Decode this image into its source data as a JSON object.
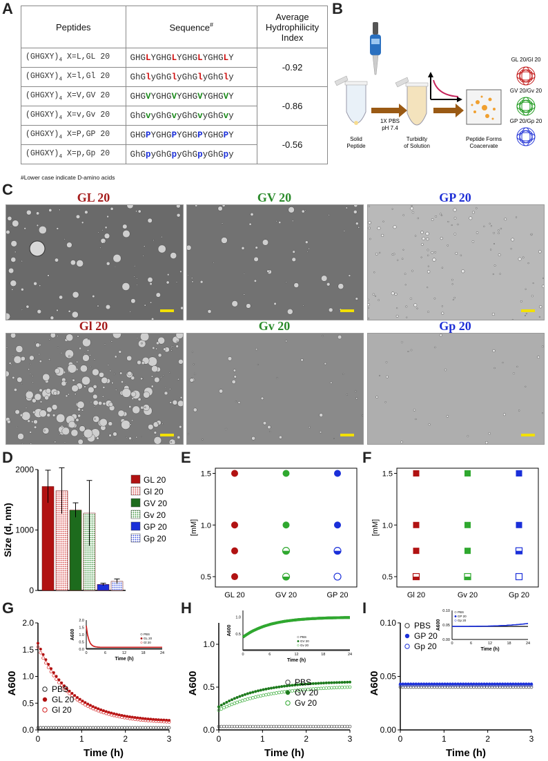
{
  "panels": {
    "a": "A",
    "b": "B",
    "c": "C",
    "d": "D",
    "e": "E",
    "f": "F",
    "g": "G",
    "h": "H",
    "i": "I"
  },
  "table": {
    "headers": [
      "Peptides",
      "Sequence",
      "#",
      "Average Hydrophilicity Index"
    ],
    "rows": [
      {
        "peptide": "(GHGXY)",
        "sub": "4",
        "rest": " X=L,GL 20",
        "seq": [
          [
            "GHG",
            ""
          ],
          [
            "L",
            "r"
          ],
          [
            "YGHG",
            ""
          ],
          [
            "L",
            "r"
          ],
          [
            "YGHG",
            ""
          ],
          [
            "L",
            "r"
          ],
          [
            "YGHG",
            ""
          ],
          [
            "L",
            "r"
          ],
          [
            "Y",
            ""
          ]
        ]
      },
      {
        "peptide": "(GHGXY)",
        "sub": "4",
        "rest": " X=l,Gl 20",
        "seq": [
          [
            "GhG",
            ""
          ],
          [
            "l",
            "r"
          ],
          [
            "yGhG",
            ""
          ],
          [
            "l",
            "r"
          ],
          [
            "yGhG",
            ""
          ],
          [
            "l",
            "r"
          ],
          [
            "yGhG",
            ""
          ],
          [
            "l",
            "r"
          ],
          [
            "y",
            ""
          ]
        ]
      },
      {
        "peptide": "(GHGXY)",
        "sub": "4",
        "rest": " X=V,GV 20",
        "seq": [
          [
            "GHG",
            ""
          ],
          [
            "V",
            "g"
          ],
          [
            "YGHG",
            ""
          ],
          [
            "V",
            "g"
          ],
          [
            "YGHG",
            ""
          ],
          [
            "V",
            "g"
          ],
          [
            "YGHG",
            ""
          ],
          [
            "V",
            "g"
          ],
          [
            "Y",
            ""
          ]
        ]
      },
      {
        "peptide": "(GHGXY)",
        "sub": "4",
        "rest": " X=v,Gv 20",
        "seq": [
          [
            "GhG",
            ""
          ],
          [
            "v",
            "g"
          ],
          [
            "yGhG",
            ""
          ],
          [
            "v",
            "g"
          ],
          [
            "yGhG",
            ""
          ],
          [
            "v",
            "g"
          ],
          [
            "yGhG",
            ""
          ],
          [
            "v",
            "g"
          ],
          [
            "y",
            ""
          ]
        ]
      },
      {
        "peptide": "(GHGXY)",
        "sub": "4",
        "rest": " X=P,GP 20",
        "seq": [
          [
            "GHG",
            ""
          ],
          [
            "P",
            "b"
          ],
          [
            "YGHG",
            ""
          ],
          [
            "P",
            "b"
          ],
          [
            "YGHG",
            ""
          ],
          [
            "P",
            "b"
          ],
          [
            "YGHG",
            ""
          ],
          [
            "P",
            "b"
          ],
          [
            "Y",
            ""
          ]
        ]
      },
      {
        "peptide": "(GHGXY)",
        "sub": "4",
        "rest": " X=p,Gp 20",
        "seq": [
          [
            "GhG",
            ""
          ],
          [
            "p",
            "b"
          ],
          [
            "yGhG",
            ""
          ],
          [
            "p",
            "b"
          ],
          [
            "yGhG",
            ""
          ],
          [
            "p",
            "b"
          ],
          [
            "yGhG",
            ""
          ],
          [
            "p",
            "b"
          ],
          [
            "y",
            ""
          ]
        ]
      }
    ],
    "indices": [
      "-0.92",
      "-0.86",
      "-0.56"
    ],
    "footnote": "#Lower case indicate D-amino acids"
  },
  "schematic": {
    "solid": "Solid\nPeptide",
    "pbs1": "1X PBS",
    "pbs2": "pH 7.4",
    "turbidity": "Turbidity\nof Solution",
    "coacervate": "Peptide Forms\nCoacervate",
    "pairs": [
      "GL 20/Gl 20",
      "GV 20/Gv 20",
      "GP 20/Gp 20"
    ]
  },
  "micrographs": {
    "titles": [
      "GL 20",
      "GV 20",
      "GP 20",
      "Gl 20",
      "Gv 20",
      "Gp 20"
    ],
    "title_colors": [
      "#a51c1c",
      "#2a8a2a",
      "#1e2fd6",
      "#a51c1c",
      "#2a8a2a",
      "#1e2fd6"
    ]
  },
  "colors": {
    "red": "#b11212",
    "green": "#1d7a1d",
    "blue": "#1a2fd9",
    "ltgreen": "#2fa82f"
  },
  "chart_data": [
    {
      "id": "D",
      "type": "bar",
      "ylabel": "Size (d, nm)",
      "ylim": [
        0,
        2000
      ],
      "yticks": [
        0,
        1000,
        2000
      ],
      "categories": [
        "GL 20",
        "Gl 20",
        "GV 20",
        "Gv 20",
        "GP 20",
        "Gp 20"
      ],
      "values": [
        1720,
        1650,
        1330,
        1280,
        100,
        150
      ],
      "errors": [
        270,
        380,
        120,
        540,
        20,
        40
      ],
      "legend": [
        "GL 20",
        "Gl 20",
        "GV 20",
        "Gv 20",
        "GP 20",
        "Gp 20"
      ],
      "legend_position": "right"
    },
    {
      "id": "E",
      "type": "scatter",
      "ylabel": "[mM]",
      "xcategories": [
        "GL 20",
        "GV 20",
        "GP 20"
      ],
      "yticks": [
        "0.5",
        "1.0",
        "1.5"
      ],
      "points": [
        {
          "x": "GL 20",
          "y": 1.5,
          "fill": "full"
        },
        {
          "x": "GL 20",
          "y": 1.0,
          "fill": "full"
        },
        {
          "x": "GL 20",
          "y": 0.75,
          "fill": "full"
        },
        {
          "x": "GL 20",
          "y": 0.5,
          "fill": "full"
        },
        {
          "x": "GV 20",
          "y": 1.5,
          "fill": "full"
        },
        {
          "x": "GV 20",
          "y": 1.0,
          "fill": "full"
        },
        {
          "x": "GV 20",
          "y": 0.75,
          "fill": "half"
        },
        {
          "x": "GV 20",
          "y": 0.5,
          "fill": "half"
        },
        {
          "x": "GP 20",
          "y": 1.5,
          "fill": "full"
        },
        {
          "x": "GP 20",
          "y": 1.0,
          "fill": "full"
        },
        {
          "x": "GP 20",
          "y": 0.75,
          "fill": "half"
        },
        {
          "x": "GP 20",
          "y": 0.5,
          "fill": "empty"
        }
      ]
    },
    {
      "id": "F",
      "type": "scatter",
      "ylabel": "[mM]",
      "xcategories": [
        "Gl 20",
        "Gv 20",
        "Gp 20"
      ],
      "yticks": [
        "0.5",
        "1.0",
        "1.5"
      ],
      "points": [
        {
          "x": "Gl 20",
          "y": 1.5,
          "fill": "full"
        },
        {
          "x": "Gl 20",
          "y": 1.0,
          "fill": "full"
        },
        {
          "x": "Gl 20",
          "y": 0.75,
          "fill": "full"
        },
        {
          "x": "Gl 20",
          "y": 0.5,
          "fill": "half"
        },
        {
          "x": "Gv 20",
          "y": 1.5,
          "fill": "full"
        },
        {
          "x": "Gv 20",
          "y": 1.0,
          "fill": "full"
        },
        {
          "x": "Gv 20",
          "y": 0.75,
          "fill": "full"
        },
        {
          "x": "Gv 20",
          "y": 0.5,
          "fill": "half"
        },
        {
          "x": "Gp 20",
          "y": 1.5,
          "fill": "full"
        },
        {
          "x": "Gp 20",
          "y": 1.0,
          "fill": "full"
        },
        {
          "x": "Gp 20",
          "y": 0.75,
          "fill": "half"
        },
        {
          "x": "Gp 20",
          "y": 0.5,
          "fill": "empty"
        }
      ]
    },
    {
      "id": "G",
      "type": "scatter",
      "xlabel": "Time (h)",
      "ylabel": "A600",
      "ylim": [
        0,
        2.0
      ],
      "xlim": [
        0,
        3
      ],
      "yticks": [
        "0.0",
        "0.5",
        "1.0",
        "1.5",
        "2.0"
      ],
      "xticks": [
        "0",
        "1",
        "2",
        "3"
      ],
      "legend": [
        "PBS",
        "GL 20",
        "Gl 20"
      ],
      "series": [
        {
          "name": "PBS",
          "style": "open",
          "color": "#222",
          "start": 0.04,
          "end": 0.04,
          "k": 1
        },
        {
          "name": "GL 20",
          "style": "filled",
          "color": "#b11212",
          "start": 1.62,
          "end": 0.15,
          "k": 1.3
        },
        {
          "name": "Gl 20",
          "style": "open",
          "color": "#d32020",
          "start": 1.55,
          "end": 0.12,
          "k": 1.3
        }
      ],
      "inset": {
        "ylabel": "A600",
        "xlabel": "Time (h)",
        "ylim": [
          0,
          2.0
        ],
        "yticks": [
          "0.0",
          "0.5",
          "1.0",
          "1.5",
          "2.0"
        ],
        "xticks": [
          "0",
          "6",
          "12",
          "18",
          "24"
        ],
        "legend": [
          "PBS",
          "GL 20",
          "Gl 20"
        ]
      }
    },
    {
      "id": "H",
      "type": "scatter",
      "xlabel": "Time (h)",
      "ylabel": "A600",
      "ylim": [
        0,
        1.25
      ],
      "xlim": [
        0,
        3
      ],
      "yticks": [
        "0.0",
        "0.5",
        "1.0"
      ],
      "xticks": [
        "0",
        "1",
        "2",
        "3"
      ],
      "legend": [
        "PBS",
        "GV 20",
        "Gv 20"
      ],
      "series": [
        {
          "name": "PBS",
          "style": "open",
          "color": "#444",
          "start": 0.04,
          "end": 0.04,
          "k": 1
        },
        {
          "name": "GV 20",
          "style": "filled",
          "color": "#1d7a1d",
          "start": 0.27,
          "end": 0.57,
          "k": 1.2
        },
        {
          "name": "Gv 20",
          "style": "open",
          "color": "#2fa82f",
          "start": 0.23,
          "end": 0.52,
          "k": 1.0
        }
      ],
      "inset": {
        "ylabel": "A600",
        "xlabel": "Time (h)",
        "ylim": [
          0,
          1.2
        ],
        "yticks": [
          "0.5",
          "1.0"
        ],
        "xticks": [
          "0",
          "6",
          "12",
          "18",
          "24"
        ],
        "legend": [
          "PBS",
          "GV 20",
          "Gv 20"
        ]
      }
    },
    {
      "id": "I",
      "type": "scatter",
      "xlabel": "Time (h)",
      "ylabel": "A600",
      "ylim": [
        0,
        0.1
      ],
      "xlim": [
        0,
        3
      ],
      "yticks": [
        "0.00",
        "0.05",
        "0.10"
      ],
      "xticks": [
        "0",
        "1",
        "2",
        "3"
      ],
      "legend": [
        "PBS",
        "GP 20",
        "Gp 20"
      ],
      "series": [
        {
          "name": "PBS",
          "style": "open",
          "color": "#333",
          "start": 0.04,
          "end": 0.04,
          "k": 1
        },
        {
          "name": "GP 20",
          "style": "filled",
          "color": "#1a2fd9",
          "start": 0.043,
          "end": 0.043,
          "k": 1
        },
        {
          "name": "Gp 20",
          "style": "open",
          "color": "#1a2fd9",
          "start": 0.042,
          "end": 0.042,
          "k": 1
        }
      ],
      "inset": {
        "ylabel": "A600",
        "xlabel": "Time (h)",
        "ylim": [
          0,
          0.1
        ],
        "yticks": [
          "0.00",
          "0.05",
          "0.10"
        ],
        "xticks": [
          "0",
          "6",
          "12",
          "18",
          "24"
        ],
        "legend": [
          "PBS",
          "GP 20",
          "Gp 20"
        ]
      }
    }
  ]
}
